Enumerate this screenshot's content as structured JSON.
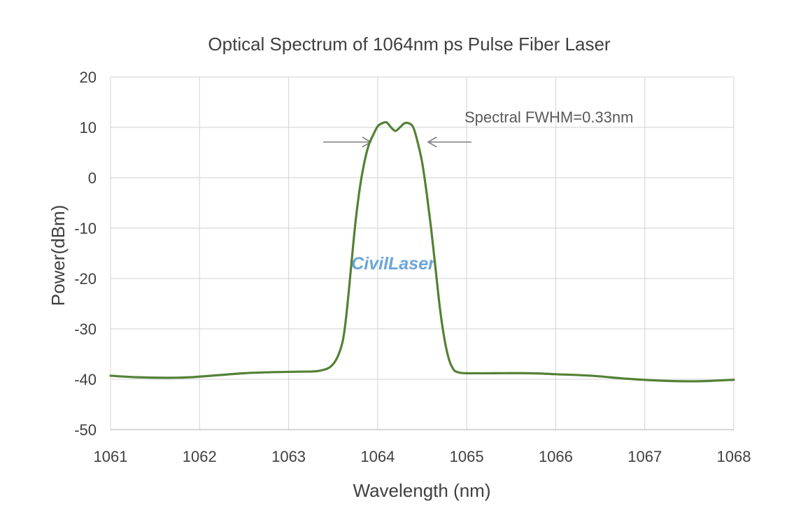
{
  "chart_data": {
    "type": "line",
    "title": "Optical Spectrum of 1064nm ps Pulse Fiber Laser",
    "xlabel": "Wavelength (nm)",
    "ylabel": "Power(dBm)",
    "xlim": [
      1061,
      1068
    ],
    "ylim": [
      -50,
      20
    ],
    "x_ticks": [
      "1061",
      "1062",
      "1063",
      "1064",
      "1065",
      "1066",
      "1067",
      "1068"
    ],
    "y_ticks": [
      "20",
      "10",
      "0",
      "-10",
      "-20",
      "-30",
      "-40",
      "-50"
    ],
    "grid": true,
    "legend": "none",
    "series": [
      {
        "name": "Spectrum",
        "color": "#538135",
        "x": [
          1061.0,
          1061.3,
          1061.6,
          1061.9,
          1062.2,
          1062.5,
          1062.8,
          1063.1,
          1063.35,
          1063.5,
          1063.6,
          1063.65,
          1063.7,
          1063.75,
          1063.8,
          1063.85,
          1063.9,
          1063.95,
          1064.0,
          1064.05,
          1064.1,
          1064.15,
          1064.2,
          1064.25,
          1064.3,
          1064.35,
          1064.4,
          1064.45,
          1064.5,
          1064.55,
          1064.6,
          1064.65,
          1064.7,
          1064.75,
          1064.8,
          1064.85,
          1064.9,
          1065.0,
          1065.3,
          1065.7,
          1066.0,
          1066.4,
          1066.8,
          1067.2,
          1067.6,
          1068.0
        ],
        "y": [
          -39.3,
          -39.6,
          -39.7,
          -39.6,
          -39.2,
          -38.8,
          -38.6,
          -38.5,
          -38.3,
          -37.0,
          -33.0,
          -27.0,
          -18.0,
          -9.0,
          -2.0,
          3.0,
          6.5,
          8.5,
          10.2,
          10.8,
          11.0,
          10.0,
          9.3,
          10.0,
          10.8,
          10.8,
          10.0,
          7.0,
          3.0,
          -3.0,
          -10.0,
          -18.0,
          -26.0,
          -32.0,
          -36.0,
          -38.0,
          -38.6,
          -38.8,
          -38.8,
          -38.8,
          -39.0,
          -39.3,
          -39.9,
          -40.3,
          -40.4,
          -40.1
        ]
      }
    ],
    "annotations": [
      {
        "text": "Spectral FWHM=0.33nm",
        "x": 1065.0,
        "y": 12.0
      }
    ]
  },
  "watermark": {
    "text": "CivilLaser",
    "color": "#5b9bd5"
  },
  "colors": {
    "grid": "#d9d9d9",
    "axis": "#bfbfbf",
    "arrow": "#7f7f7f"
  }
}
